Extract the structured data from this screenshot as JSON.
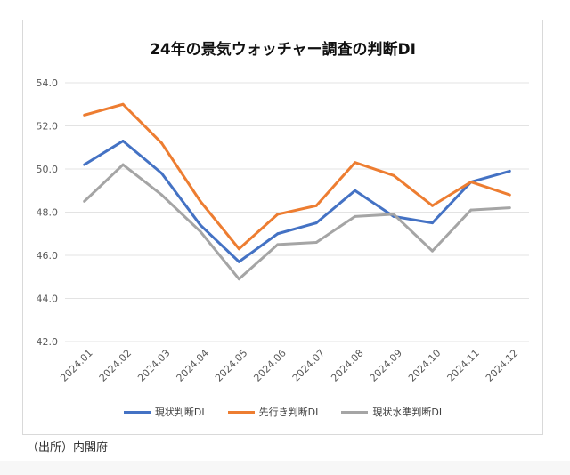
{
  "chart_data": {
    "type": "line",
    "title": "24年の景気ウォッチャー調査の判断DI",
    "categories": [
      "2024.01",
      "2024.02",
      "2024.03",
      "2024.04",
      "2024.05",
      "2024.06",
      "2024.07",
      "2024.08",
      "2024.09",
      "2024.10",
      "2024.11",
      "2024.12"
    ],
    "ylim": [
      42,
      54
    ],
    "yticks": [
      "42.0",
      "44.0",
      "46.0",
      "48.0",
      "50.0",
      "52.0",
      "54.0"
    ],
    "grid": true,
    "legend_position": "bottom",
    "series": [
      {
        "name": "現状判断DI",
        "color": "#4472c4",
        "values": [
          50.2,
          51.3,
          49.8,
          47.4,
          45.7,
          47.0,
          47.5,
          49.0,
          47.8,
          47.5,
          49.4,
          49.9
        ]
      },
      {
        "name": "先行き判断DI",
        "color": "#ed7d31",
        "values": [
          52.5,
          53.0,
          51.2,
          48.5,
          46.3,
          47.9,
          48.3,
          50.3,
          49.7,
          48.3,
          49.4,
          48.8
        ]
      },
      {
        "name": "現状水準判断DI",
        "color": "#a5a5a5",
        "values": [
          48.5,
          50.2,
          48.8,
          47.1,
          44.9,
          46.5,
          46.6,
          47.8,
          47.9,
          46.2,
          48.1,
          48.2
        ]
      }
    ]
  },
  "source": "（出所）内閣府"
}
